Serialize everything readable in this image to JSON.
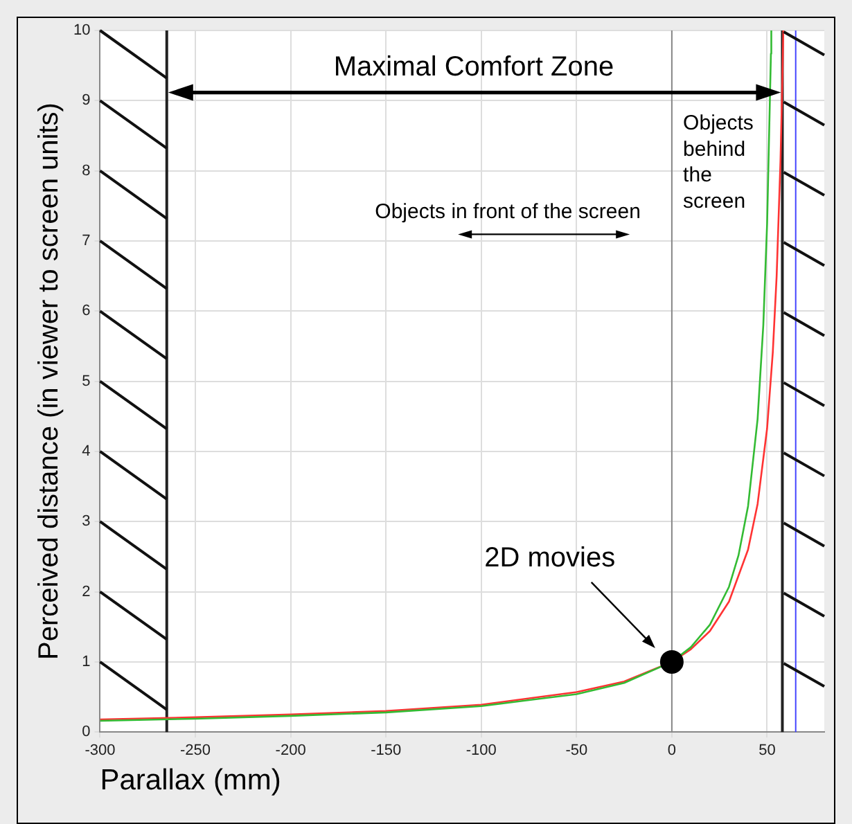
{
  "chart_data": {
    "type": "line",
    "xlabel": "Parallax (mm)",
    "ylabel": "Perceived distance (in viewer to screen units)",
    "xlim": [
      -300,
      80
    ],
    "ylim": [
      0,
      10
    ],
    "xticks": [
      -300,
      -250,
      -200,
      -150,
      -100,
      -50,
      0,
      50
    ],
    "yticks": [
      0,
      1,
      2,
      3,
      4,
      5,
      6,
      7,
      8,
      9,
      10
    ],
    "grid": true,
    "legend": false,
    "marker": "none",
    "series": [
      {
        "color": "#33bb33",
        "x": [
          -300,
          -250,
          -200,
          -150,
          -100,
          -50,
          -25,
          0,
          10,
          20,
          30,
          35,
          40,
          45,
          48,
          50,
          52,
          52.2
        ],
        "values": [
          0.16,
          0.19,
          0.23,
          0.28,
          0.37,
          0.54,
          0.7,
          1,
          1.21,
          1.53,
          2.07,
          2.52,
          3.22,
          4.46,
          5.8,
          7.25,
          9.67,
          10
        ]
      },
      {
        "color": "#ff3333",
        "x": [
          -300,
          -250,
          -200,
          -150,
          -100,
          -50,
          -25,
          0,
          10,
          20,
          30,
          40,
          45,
          50,
          53,
          55,
          57,
          58,
          58.5
        ],
        "values": [
          0.18,
          0.21,
          0.25,
          0.3,
          0.39,
          0.57,
          0.72,
          1,
          1.18,
          1.44,
          1.86,
          2.6,
          3.25,
          4.33,
          5.42,
          6.5,
          8.13,
          9.29,
          10
        ]
      },
      {
        "type": "scatter",
        "marker": "circle",
        "color": "#000000",
        "x": [
          0
        ],
        "values": [
          1
        ]
      }
    ],
    "ref_lines": [
      {
        "axis": "x",
        "value": -265,
        "color": "#222222"
      },
      {
        "axis": "x",
        "value": 58,
        "color": "#222222"
      },
      {
        "axis": "x",
        "value": 65,
        "color": "#4444ff"
      },
      {
        "axis": "x",
        "value": 0,
        "color": "#888888"
      }
    ],
    "annotations": [
      "Maximal Comfort Zone",
      "Objects in front of the screen",
      "Objects behind the screen",
      "2D movies"
    ]
  }
}
